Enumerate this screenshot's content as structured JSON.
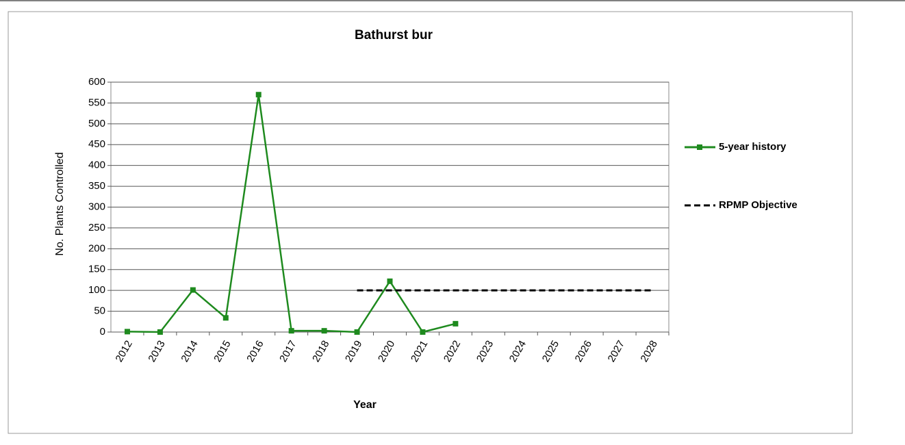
{
  "chart_data": {
    "type": "line",
    "title": "Bathurst bur",
    "x_label": "Year",
    "y_label": "No. Plants Controlled",
    "categories": [
      "2012",
      "2013",
      "2014",
      "2015",
      "2016",
      "2017",
      "2018",
      "2019",
      "2020",
      "2021",
      "2022",
      "2023",
      "2024",
      "2025",
      "2026",
      "2027",
      "2028"
    ],
    "series": [
      {
        "name": "5-year history",
        "color": "#1e8a1e",
        "marker": "square",
        "dashed": false,
        "values": [
          1,
          0,
          101,
          34,
          570,
          3,
          3,
          0,
          122,
          0,
          20,
          null,
          null,
          null,
          null,
          null,
          null
        ]
      },
      {
        "name": "RPMP Objective",
        "color": "#000000",
        "marker": null,
        "dashed": true,
        "values": [
          null,
          null,
          null,
          null,
          null,
          null,
          null,
          100,
          100,
          100,
          100,
          100,
          100,
          100,
          100,
          100,
          100
        ]
      }
    ],
    "ylim": [
      0,
      600
    ],
    "yticks": [
      0,
      50,
      100,
      150,
      200,
      250,
      300,
      350,
      400,
      450,
      500,
      550,
      600
    ],
    "grid": true,
    "legend": "right"
  }
}
